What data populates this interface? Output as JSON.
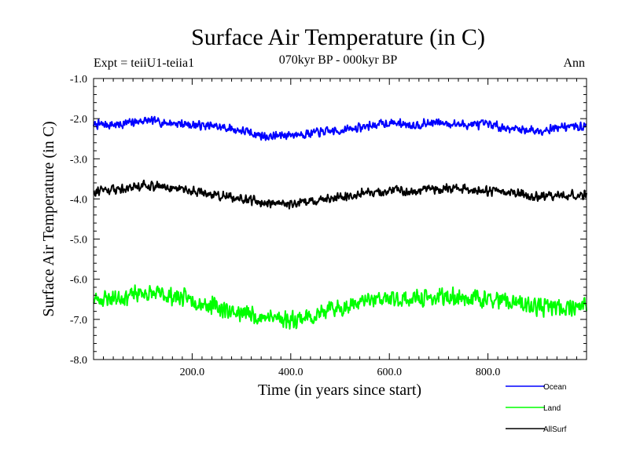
{
  "chart_data": {
    "type": "line",
    "title": "Surface Air Temperature (in C)",
    "subtitle": "070kyr BP - 000kyr BP",
    "expt_label": "Expt = teiiU1-teiia1",
    "period_label": "Ann",
    "xlabel": "Time (in years since start)",
    "ylabel": "Surface Air Temperature (in C)",
    "xlim": [
      0,
      1000
    ],
    "ylim": [
      -8.0,
      -1.0
    ],
    "x_ticks": [
      200,
      400,
      600,
      800
    ],
    "x_tick_labels": [
      "200.0",
      "400.0",
      "600.0",
      "800.0"
    ],
    "y_ticks": [
      -1,
      -2,
      -3,
      -4,
      -5,
      -6,
      -7,
      -8
    ],
    "y_tick_labels": [
      "-1.0",
      "-2.0",
      "-3.0",
      "-4.0",
      "-5.0",
      "-6.0",
      "-7.0",
      "-8.0"
    ],
    "grid": false,
    "legend_position": "bottom-right",
    "series": [
      {
        "name": "Ocean",
        "color": "#0000ff",
        "x": [
          0,
          50,
          100,
          150,
          200,
          250,
          300,
          350,
          400,
          450,
          500,
          550,
          600,
          650,
          700,
          750,
          800,
          850,
          900,
          950,
          1000
        ],
        "y": [
          -2.15,
          -2.15,
          -2.05,
          -2.1,
          -2.15,
          -2.2,
          -2.3,
          -2.45,
          -2.4,
          -2.35,
          -2.3,
          -2.2,
          -2.1,
          -2.15,
          -2.1,
          -2.15,
          -2.15,
          -2.25,
          -2.3,
          -2.2,
          -2.2
        ]
      },
      {
        "name": "Land",
        "color": "#00ff00",
        "x": [
          0,
          50,
          100,
          150,
          200,
          250,
          300,
          350,
          400,
          450,
          500,
          550,
          600,
          650,
          700,
          750,
          800,
          850,
          900,
          950,
          1000
        ],
        "y": [
          -6.5,
          -6.45,
          -6.35,
          -6.4,
          -6.5,
          -6.7,
          -6.85,
          -6.95,
          -7.0,
          -6.9,
          -6.7,
          -6.55,
          -6.5,
          -6.5,
          -6.45,
          -6.45,
          -6.5,
          -6.6,
          -6.7,
          -6.7,
          -6.65
        ]
      },
      {
        "name": "AllSurf",
        "color": "#000000",
        "x": [
          0,
          50,
          100,
          150,
          200,
          250,
          300,
          350,
          400,
          450,
          500,
          550,
          600,
          650,
          700,
          750,
          800,
          850,
          900,
          950,
          1000
        ],
        "y": [
          -3.8,
          -3.75,
          -3.65,
          -3.7,
          -3.8,
          -3.9,
          -4.0,
          -4.1,
          -4.15,
          -4.05,
          -3.95,
          -3.85,
          -3.8,
          -3.8,
          -3.75,
          -3.75,
          -3.8,
          -3.85,
          -3.95,
          -3.9,
          -3.9
        ]
      }
    ]
  }
}
